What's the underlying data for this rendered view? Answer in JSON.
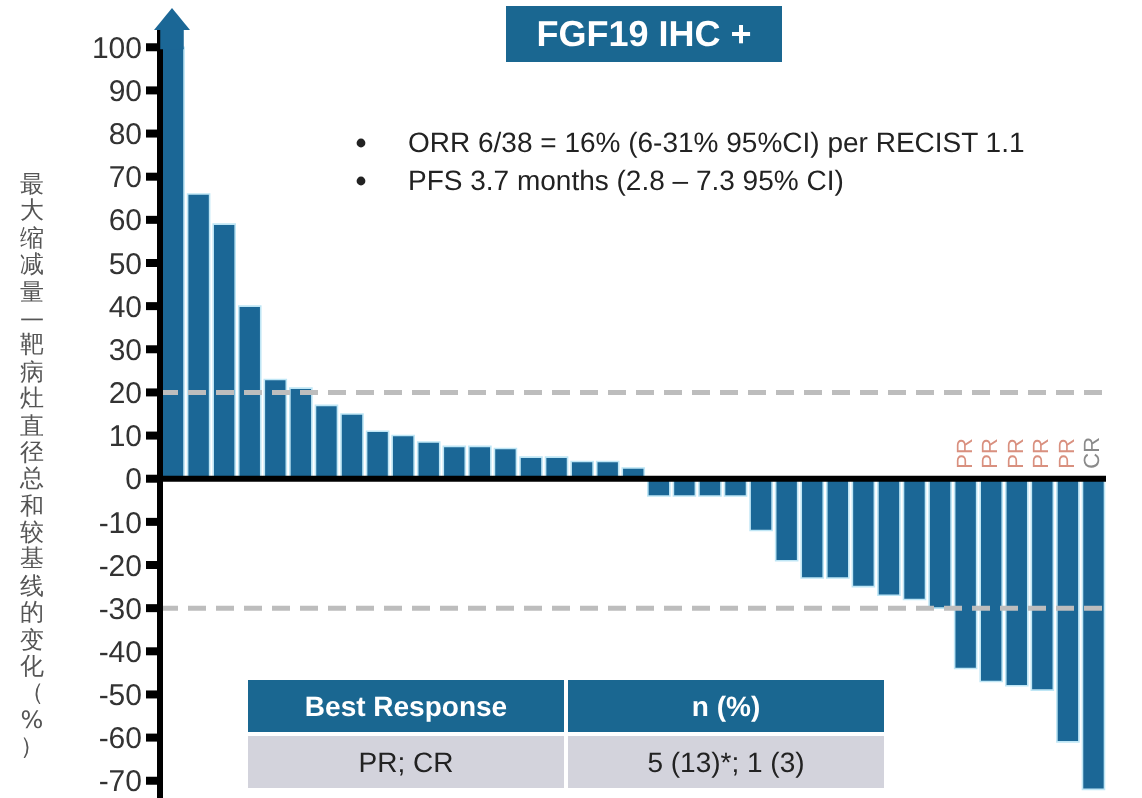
{
  "chart_data": {
    "type": "bar",
    "title": "FGF19 IHC +",
    "ylabel": "最大缩减量—靶病灶直径总和较基线的变化（%）",
    "categories": [
      null,
      null,
      null,
      null,
      null,
      null,
      null,
      null,
      null,
      null,
      null,
      null,
      null,
      null,
      null,
      null,
      null,
      null,
      null,
      null,
      null,
      null,
      null,
      null,
      null,
      null,
      null,
      null,
      null,
      null,
      null,
      null,
      null,
      null,
      null,
      null,
      null
    ],
    "values": [
      100,
      66,
      59,
      40,
      23,
      21,
      17,
      15,
      11,
      10,
      8.5,
      7.5,
      7.5,
      7,
      5,
      5,
      4,
      4,
      2.5,
      -4,
      -4,
      -4,
      -4,
      -12,
      -19,
      -23,
      -23,
      -25,
      -27,
      -28,
      -30,
      -44,
      -47,
      -48,
      -49,
      -61,
      -72
    ],
    "value_labels": [
      null,
      null,
      null,
      null,
      null,
      null,
      null,
      null,
      null,
      null,
      null,
      null,
      null,
      null,
      null,
      null,
      null,
      null,
      null,
      null,
      null,
      null,
      null,
      null,
      null,
      null,
      null,
      null,
      null,
      null,
      null,
      "PR",
      "PR",
      "PR",
      "PR",
      "PR",
      "CR"
    ],
    "color": "#1b6796",
    "ylim": [
      -74,
      104
    ],
    "yticks": [
      -70,
      -60,
      -50,
      -40,
      -30,
      -20,
      -10,
      0,
      10,
      20,
      30,
      40,
      50,
      60,
      70,
      80,
      90,
      100
    ],
    "ref_lines": [
      {
        "axis": "y",
        "value": 20,
        "color": "#bdbdbd",
        "line_style": "dashed"
      },
      {
        "axis": "y",
        "value": -30,
        "color": "#bdbdbd",
        "line_style": "dashed"
      }
    ],
    "annotations": [
      "ORR 6/38 = 16% (6-31% 95%CI) per RECIST 1.1",
      "PFS 3.7 months (2.8 – 7.3 95% CI)",
      "Best Response",
      "n (%)",
      "PR; CR",
      "5 (13)*; 1 (3)"
    ],
    "grid": false
  }
}
